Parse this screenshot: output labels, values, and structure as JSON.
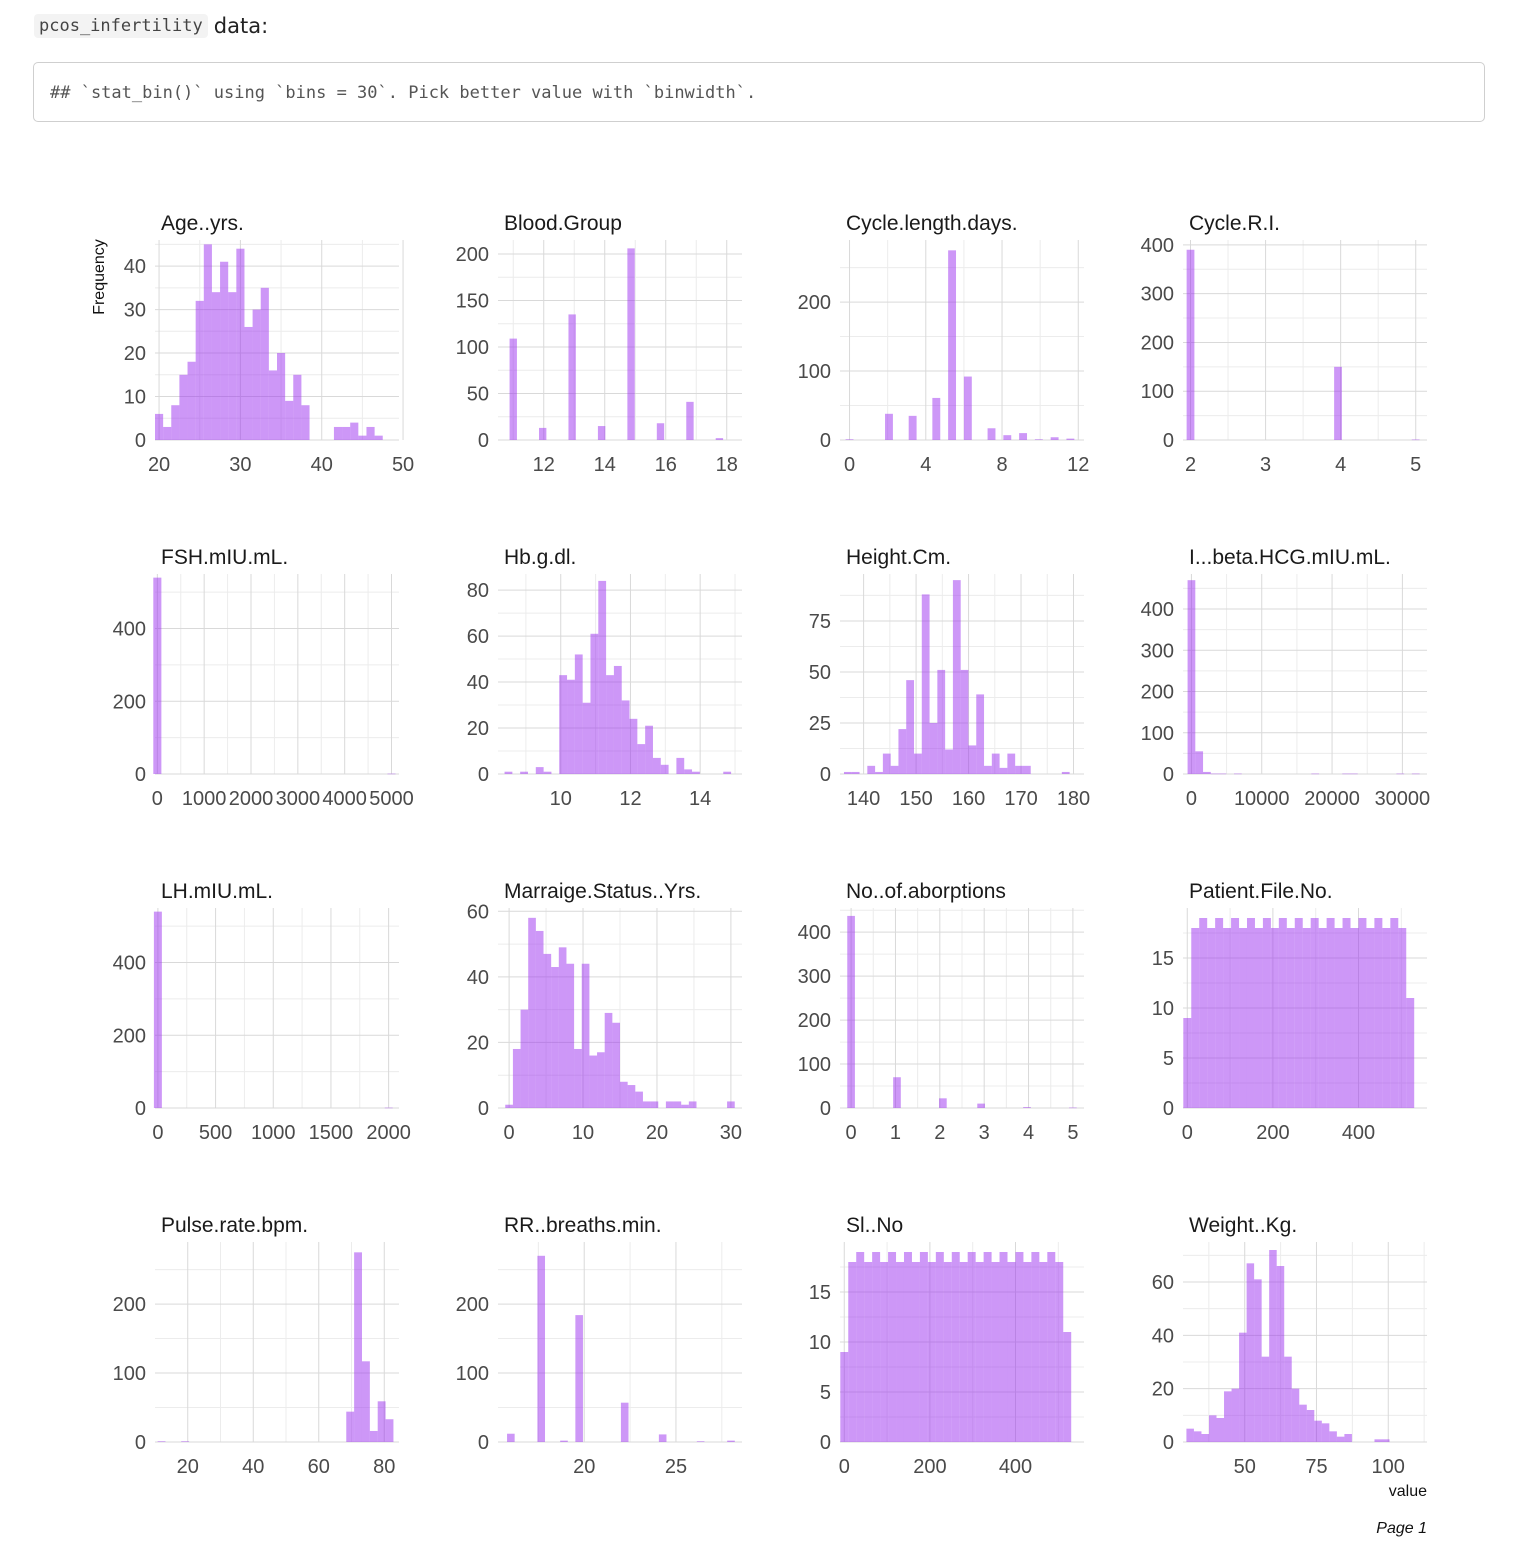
{
  "intro": {
    "code": "pcos_infertility",
    "text": "data:"
  },
  "output": {
    "message": "## `stat_bin()` using `bins = 30`. Pick better value with `binwidth`."
  },
  "plot_labels": {
    "ylabel": "Frequency",
    "xlabel": "value",
    "page": "Page 1"
  },
  "colors": {
    "bar": "#9b30ef",
    "grid": "#d9d9d9"
  },
  "chart_data": {
    "type": "bar",
    "subtype": "faceted-histogram",
    "bins": 30,
    "ylabel": "Frequency",
    "xlabel": "value",
    "grid": true,
    "facets": [
      {
        "title": "Age..yrs.",
        "xlim": [
          19.5,
          49.5
        ],
        "ylim": [
          0,
          46
        ],
        "xticks": [
          "20",
          "30",
          "40",
          "50"
        ],
        "xtickvals": [
          20,
          30,
          40,
          50
        ],
        "yticks": [
          0,
          10,
          20,
          30,
          40
        ],
        "start": 20,
        "binwidth": 1,
        "counts": [
          6,
          3,
          8,
          15,
          18,
          32,
          45,
          34,
          41,
          34,
          44,
          26,
          30,
          35,
          16,
          20,
          9,
          15,
          8,
          0,
          0,
          0,
          3,
          3,
          4,
          1,
          3,
          1,
          0,
          0
        ]
      },
      {
        "title": "Blood.Group",
        "xlim": [
          10.5,
          18.5
        ],
        "ylim": [
          0,
          215
        ],
        "xticks": [
          "12",
          "14",
          "16",
          "18"
        ],
        "xtickvals": [
          12,
          14,
          16,
          18
        ],
        "yticks": [
          0,
          50,
          100,
          150,
          200
        ],
        "start": 11,
        "binwidth": 0.2414,
        "counts": [
          109,
          0,
          0,
          0,
          13,
          0,
          0,
          0,
          135,
          0,
          0,
          0,
          15,
          0,
          0,
          0,
          206,
          0,
          0,
          0,
          18,
          0,
          0,
          0,
          41,
          0,
          0,
          0,
          2,
          0
        ]
      },
      {
        "title": "Cycle.length.days.",
        "xlim": [
          -0.5,
          12.3
        ],
        "ylim": [
          0,
          290
        ],
        "xticks": [
          "0",
          "4",
          "8",
          "12"
        ],
        "xtickvals": [
          0,
          4,
          8,
          12
        ],
        "yticks": [
          0,
          100,
          200
        ],
        "start": 0,
        "binwidth": 0.4138,
        "counts": [
          1,
          0,
          0,
          0,
          0,
          38,
          0,
          0,
          35,
          0,
          0,
          61,
          0,
          275,
          0,
          92,
          0,
          0,
          17,
          0,
          7,
          0,
          10,
          0,
          1,
          0,
          4,
          0,
          2,
          0
        ]
      },
      {
        "title": "Cycle.R.I.",
        "xlim": [
          1.9,
          5.15
        ],
        "ylim": [
          0,
          410
        ],
        "xticks": [
          "2",
          "3",
          "4",
          "5"
        ],
        "xtickvals": [
          2,
          3,
          4,
          5
        ],
        "yticks": [
          0,
          100,
          200,
          300,
          400
        ],
        "start": 2,
        "binwidth": 0.1034,
        "counts": [
          390,
          0,
          0,
          0,
          0,
          0,
          0,
          0,
          0,
          0,
          0,
          0,
          0,
          0,
          0,
          0,
          0,
          0,
          0,
          150,
          0,
          0,
          0,
          0,
          0,
          0,
          0,
          0,
          0,
          1
        ]
      },
      {
        "title": "FSH.mIU.mL.",
        "xlim": [
          -50,
          5160
        ],
        "ylim": [
          0,
          550
        ],
        "xticks": [
          "0",
          "1000",
          "2000",
          "3000",
          "4000",
          "5000"
        ],
        "xtickvals": [
          0,
          1000,
          2000,
          3000,
          4000,
          5000
        ],
        "yticks": [
          0,
          200,
          400
        ],
        "start": 0,
        "binwidth": 172.4,
        "counts": [
          540,
          0,
          0,
          0,
          0,
          0,
          0,
          0,
          0,
          0,
          0,
          0,
          0,
          0,
          0,
          0,
          0,
          0,
          0,
          0,
          0,
          0,
          0,
          0,
          0,
          0,
          0,
          0,
          0,
          1
        ]
      },
      {
        "title": "Hb.g.dl.",
        "xlim": [
          8.2,
          15.2
        ],
        "ylim": [
          0,
          87
        ],
        "xticks": [
          "10",
          "12",
          "14"
        ],
        "xtickvals": [
          10,
          12,
          14
        ],
        "yticks": [
          0,
          20,
          40,
          60,
          80
        ],
        "start": 8.5,
        "binwidth": 0.2241,
        "counts": [
          1,
          0,
          1,
          0,
          3,
          1,
          0,
          43,
          41,
          52,
          31,
          61,
          84,
          43,
          47,
          32,
          24,
          13,
          21,
          7,
          4,
          0,
          7,
          2,
          1,
          0,
          0,
          0,
          1,
          0
        ]
      },
      {
        "title": "Height.Cm.",
        "xlim": [
          135.5,
          182
        ],
        "ylim": [
          0,
          98
        ],
        "xticks": [
          "140",
          "150",
          "160",
          "170",
          "180"
        ],
        "xtickvals": [
          140,
          150,
          160,
          170,
          180
        ],
        "yticks": [
          0,
          25,
          50,
          75
        ],
        "start": 137,
        "binwidth": 1.4828,
        "counts": [
          1,
          1,
          0,
          4,
          1,
          10,
          4,
          22,
          46,
          10,
          88,
          25,
          51,
          12,
          95,
          51,
          14,
          39,
          4,
          10,
          3,
          10,
          4,
          4,
          0,
          0,
          0,
          0,
          1,
          0
        ]
      },
      {
        "title": "I...beta.HCG.mIU.mL.",
        "xlim": [
          -1200,
          33500
        ],
        "ylim": [
          0,
          485
        ],
        "xticks": [
          "0",
          "10000",
          "20000",
          "30000"
        ],
        "xtickvals": [
          0,
          10000,
          20000,
          30000
        ],
        "yticks": [
          0,
          100,
          200,
          300,
          400
        ],
        "start": 0,
        "binwidth": 1100,
        "counts": [
          470,
          55,
          5,
          1,
          1,
          0,
          1,
          0,
          0,
          0,
          0,
          0,
          0,
          0,
          0,
          0,
          1,
          0,
          0,
          0,
          1,
          1,
          0,
          0,
          0,
          0,
          0,
          1,
          0,
          1
        ]
      },
      {
        "title": "LH.mIU.mL.",
        "xlim": [
          -25,
          2090
        ],
        "ylim": [
          0,
          550
        ],
        "xticks": [
          "0",
          "500",
          "1000",
          "1500",
          "2000"
        ],
        "xtickvals": [
          0,
          500,
          1000,
          1500,
          2000
        ],
        "yticks": [
          0,
          200,
          400
        ],
        "start": 0,
        "binwidth": 69,
        "counts": [
          540,
          0,
          0,
          0,
          0,
          0,
          0,
          0,
          0,
          0,
          0,
          0,
          0,
          0,
          0,
          0,
          0,
          0,
          0,
          0,
          0,
          0,
          0,
          0,
          0,
          0,
          0,
          0,
          0,
          1
        ]
      },
      {
        "title": "Marraige.Status..Yrs.",
        "xlim": [
          -1.5,
          31.5
        ],
        "ylim": [
          0,
          61
        ],
        "xticks": [
          "0",
          "10",
          "20",
          "30"
        ],
        "xtickvals": [
          0,
          10,
          20,
          30
        ],
        "yticks": [
          0,
          20,
          40,
          60
        ],
        "start": 0,
        "binwidth": 1.0345,
        "counts": [
          1,
          18,
          30,
          58,
          54,
          47,
          43,
          49,
          44,
          18,
          44,
          16,
          17,
          29,
          26,
          8,
          7,
          5,
          2,
          2,
          0,
          2,
          2,
          1,
          2,
          0,
          0,
          0,
          0,
          2
        ]
      },
      {
        "title": "No..of.aborptions",
        "xlim": [
          -0.25,
          5.25
        ],
        "ylim": [
          0,
          455
        ],
        "xticks": [
          "0",
          "1",
          "2",
          "3",
          "4",
          "5"
        ],
        "xtickvals": [
          0,
          1,
          2,
          3,
          4,
          5
        ],
        "yticks": [
          0,
          100,
          200,
          300,
          400
        ],
        "start": 0,
        "binwidth": 0.1724,
        "counts": [
          437,
          0,
          0,
          0,
          0,
          0,
          70,
          0,
          0,
          0,
          0,
          0,
          22,
          0,
          0,
          0,
          0,
          10,
          0,
          0,
          0,
          0,
          0,
          2,
          0,
          0,
          0,
          0,
          0,
          1
        ]
      },
      {
        "title": "Patient.File.No.",
        "xlim": [
          -10,
          560
        ],
        "ylim": [
          0,
          20
        ],
        "xticks": [
          "0",
          "200",
          "400"
        ],
        "xtickvals": [
          0,
          200,
          400
        ],
        "yticks": [
          0,
          5,
          10,
          15
        ],
        "start": 0,
        "binwidth": 18.6,
        "counts": [
          9,
          18,
          19,
          18,
          19,
          18,
          19,
          18,
          19,
          18,
          19,
          18,
          19,
          18,
          19,
          18,
          19,
          18,
          19,
          18,
          19,
          18,
          19,
          18,
          19,
          18,
          19,
          18,
          11,
          0
        ]
      },
      {
        "title": "Pulse.rate.bpm.",
        "xlim": [
          10,
          84.5
        ],
        "ylim": [
          0,
          290
        ],
        "xticks": [
          "20",
          "40",
          "60",
          "80"
        ],
        "xtickvals": [
          20,
          40,
          60,
          80
        ],
        "yticks": [
          0,
          100,
          200
        ],
        "start": 12,
        "binwidth": 2.4,
        "counts": [
          1,
          0,
          0,
          1,
          0,
          0,
          0,
          0,
          0,
          0,
          0,
          0,
          0,
          0,
          0,
          0,
          0,
          0,
          0,
          0,
          0,
          0,
          0,
          0,
          44,
          275,
          117,
          16,
          59,
          33
        ]
      },
      {
        "title": "RR..breaths.min.",
        "xlim": [
          15.3,
          28.6
        ],
        "ylim": [
          0,
          290
        ],
        "xticks": [
          "20",
          "25"
        ],
        "xtickvals": [
          20,
          25
        ],
        "yticks": [
          0,
          100,
          200
        ],
        "start": 16,
        "binwidth": 0.4138,
        "counts": [
          12,
          0,
          0,
          0,
          270,
          0,
          0,
          2,
          0,
          184,
          0,
          0,
          0,
          0,
          0,
          57,
          0,
          0,
          0,
          0,
          11,
          0,
          0,
          0,
          0,
          1,
          0,
          0,
          0,
          2
        ]
      },
      {
        "title": "Sl..No",
        "xlim": [
          -10,
          560
        ],
        "ylim": [
          0,
          20
        ],
        "xticks": [
          "0",
          "200",
          "400"
        ],
        "xtickvals": [
          0,
          200,
          400
        ],
        "yticks": [
          0,
          5,
          10,
          15
        ],
        "start": 0,
        "binwidth": 18.6,
        "counts": [
          9,
          18,
          19,
          18,
          19,
          18,
          19,
          18,
          19,
          18,
          19,
          18,
          19,
          18,
          19,
          18,
          19,
          18,
          19,
          18,
          19,
          18,
          19,
          18,
          19,
          18,
          19,
          18,
          11,
          0
        ]
      },
      {
        "title": "Weight..Kg.",
        "xlim": [
          28.5,
          113.5
        ],
        "ylim": [
          0,
          75
        ],
        "xticks": [
          "50",
          "75",
          "100"
        ],
        "xtickvals": [
          50,
          75,
          100
        ],
        "yticks": [
          0,
          20,
          40,
          60
        ],
        "start": 31,
        "binwidth": 2.6207,
        "counts": [
          5,
          4,
          3,
          10,
          9,
          19,
          20,
          41,
          67,
          61,
          32,
          72,
          66,
          32,
          20,
          14,
          12,
          8,
          7,
          4,
          2,
          3,
          0,
          0,
          0,
          1,
          1,
          0,
          0,
          0
        ]
      }
    ]
  }
}
